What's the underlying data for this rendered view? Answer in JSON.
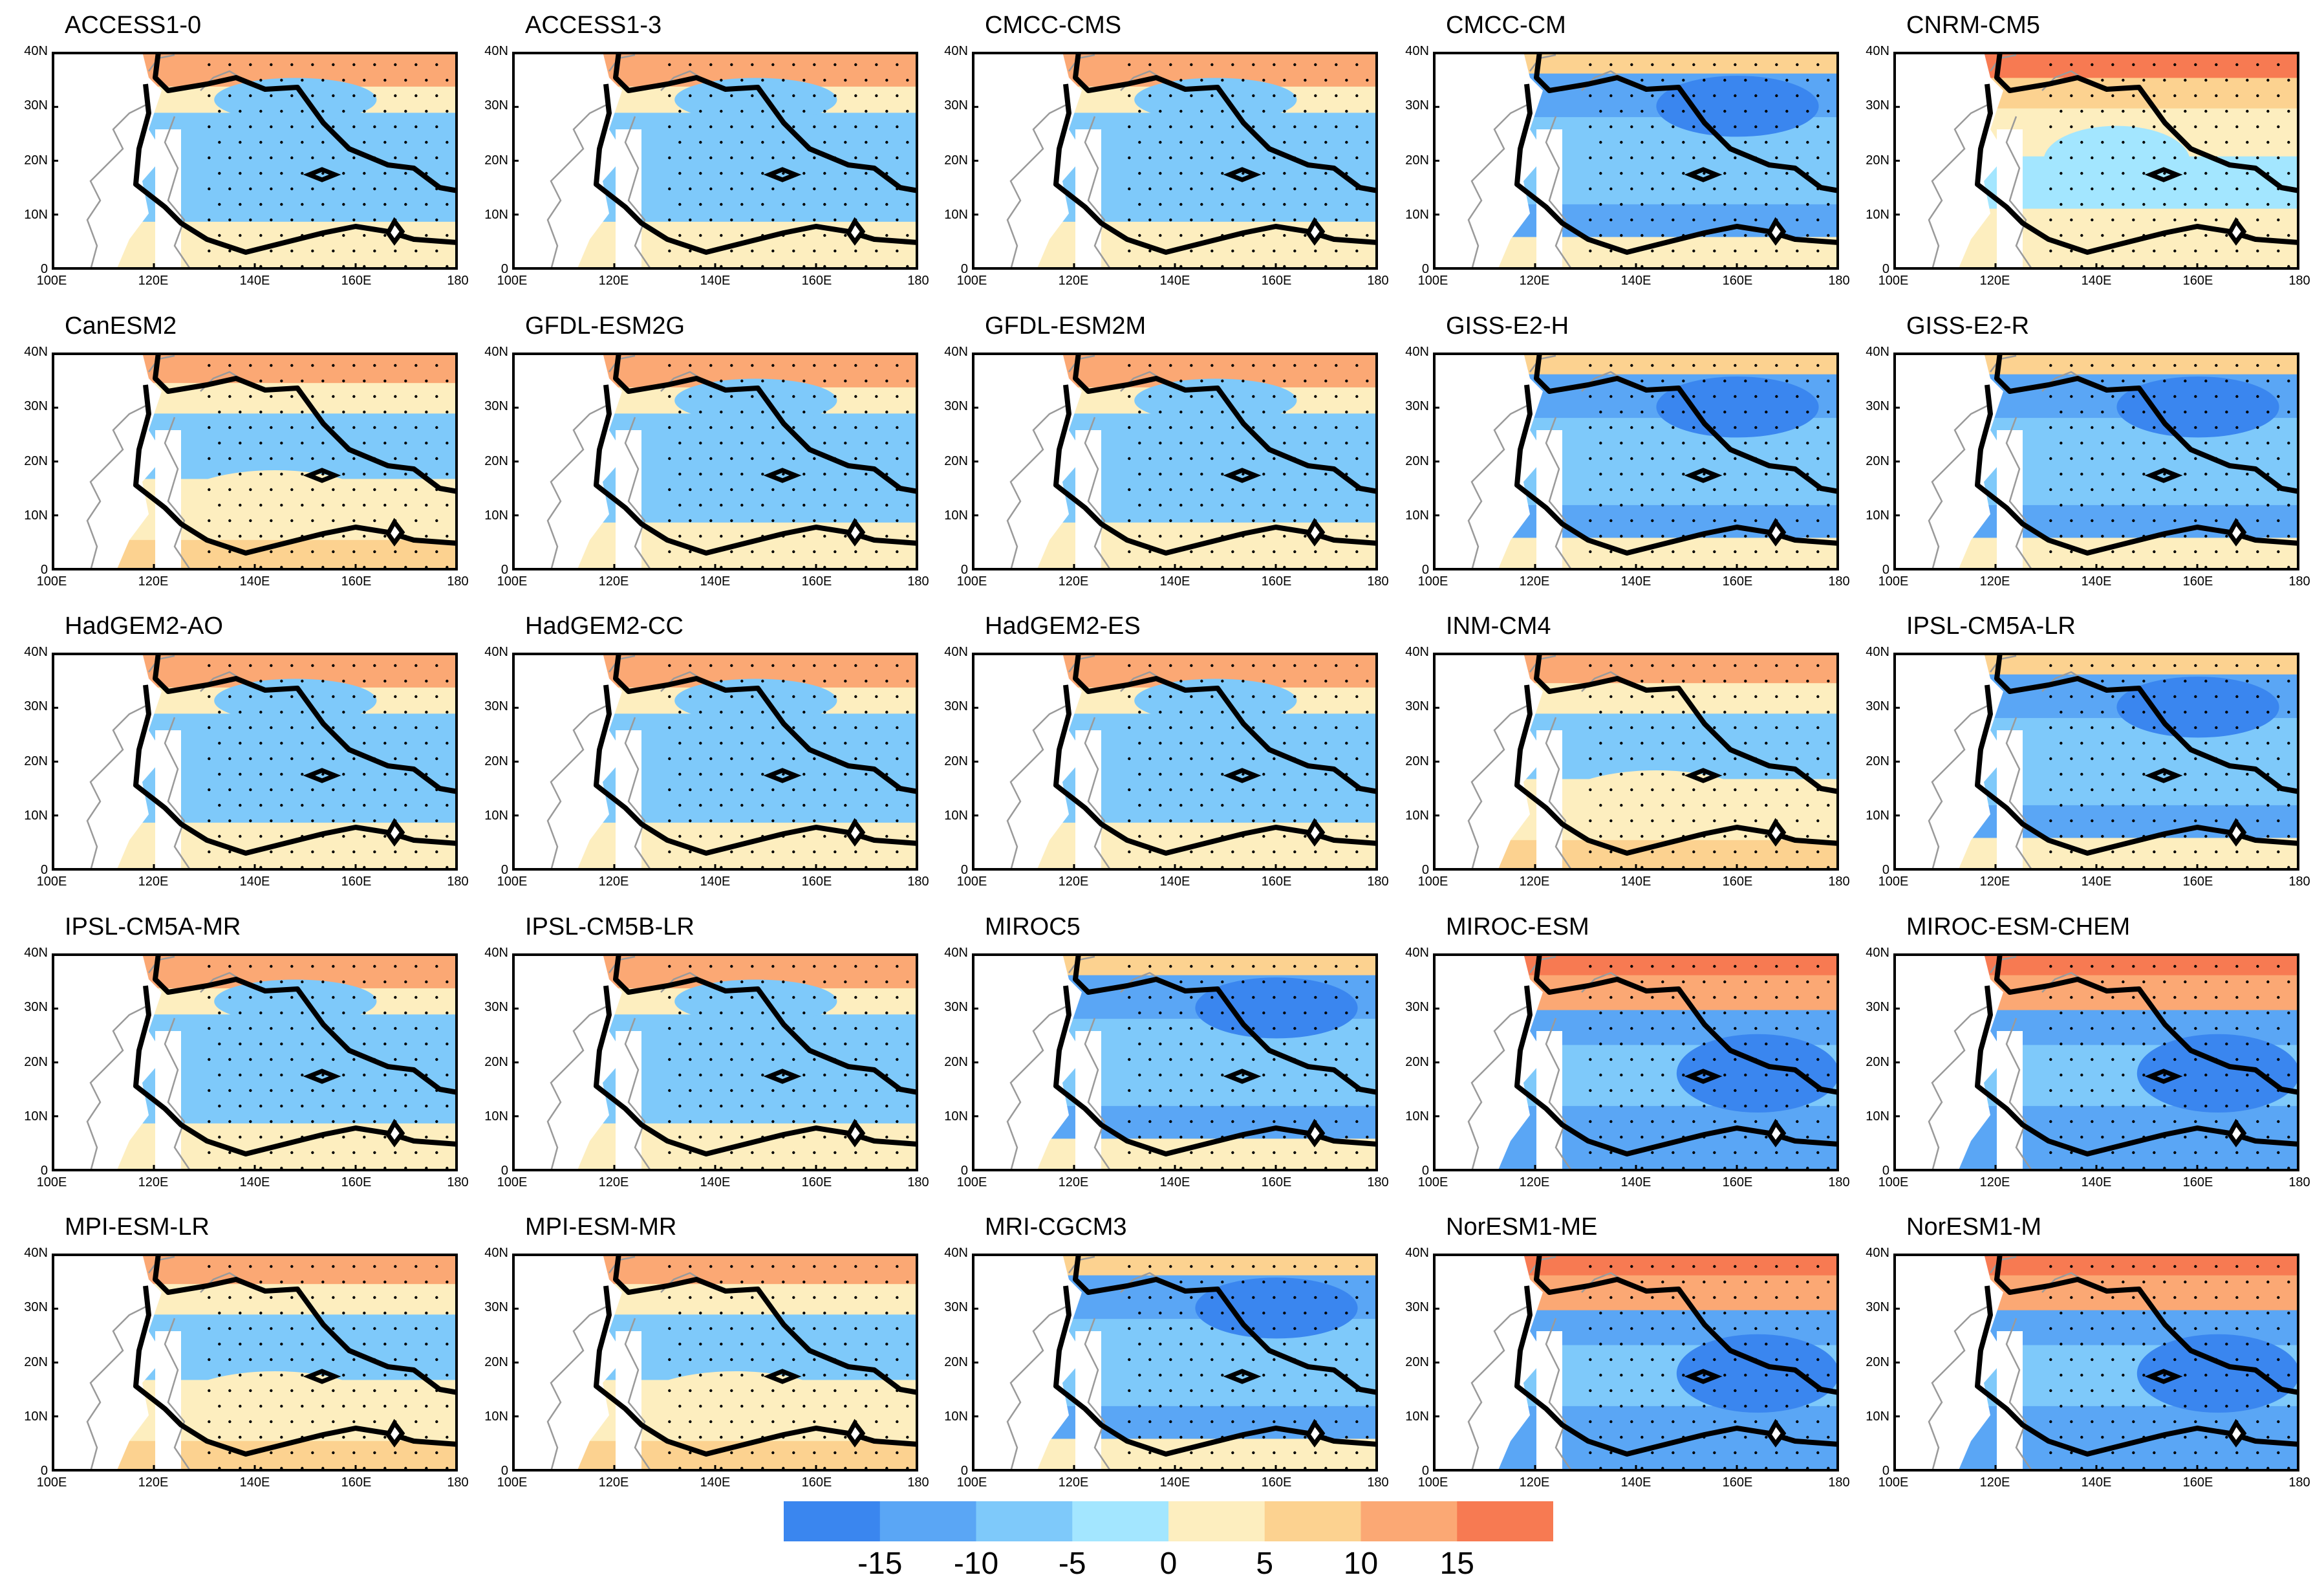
{
  "figure": {
    "panels": [
      {
        "title": "ACCESS1-0",
        "pattern": 0
      },
      {
        "title": "ACCESS1-3",
        "pattern": 0
      },
      {
        "title": "CMCC-CMS",
        "pattern": 0
      },
      {
        "title": "CMCC-CM",
        "pattern": 2
      },
      {
        "title": "CNRM-CM5",
        "pattern": 1
      },
      {
        "title": "CanESM2",
        "pattern": 3
      },
      {
        "title": "GFDL-ESM2G",
        "pattern": 0
      },
      {
        "title": "GFDL-ESM2M",
        "pattern": 0
      },
      {
        "title": "GISS-E2-H",
        "pattern": 2
      },
      {
        "title": "GISS-E2-R",
        "pattern": 2
      },
      {
        "title": "HadGEM2-AO",
        "pattern": 0
      },
      {
        "title": "HadGEM2-CC",
        "pattern": 0
      },
      {
        "title": "HadGEM2-ES",
        "pattern": 0
      },
      {
        "title": "INM-CM4",
        "pattern": 3
      },
      {
        "title": "IPSL-CM5A-LR",
        "pattern": 2
      },
      {
        "title": "IPSL-CM5A-MR",
        "pattern": 0
      },
      {
        "title": "IPSL-CM5B-LR",
        "pattern": 0
      },
      {
        "title": "MIROC5",
        "pattern": 2
      },
      {
        "title": "MIROC-ESM",
        "pattern": 4
      },
      {
        "title": "MIROC-ESM-CHEM",
        "pattern": 4
      },
      {
        "title": "MPI-ESM-LR",
        "pattern": 3
      },
      {
        "title": "MPI-ESM-MR",
        "pattern": 3
      },
      {
        "title": "MRI-CGCM3",
        "pattern": 2
      },
      {
        "title": "NorESM1-ME",
        "pattern": 4
      },
      {
        "title": "NorESM1-M",
        "pattern": 4
      }
    ],
    "axes": {
      "lat_ticks": [
        "0",
        "10N",
        "20N",
        "30N",
        "40N"
      ],
      "lon_ticks": [
        "100E",
        "120E",
        "140E",
        "160E",
        "180"
      ],
      "lat_range": [
        0,
        40
      ],
      "lon_range": [
        100,
        180
      ]
    },
    "colorbar": {
      "labels": [
        "-15",
        "-10",
        "-5",
        "0",
        "5",
        "10",
        "15"
      ],
      "boundaries": [
        -20,
        -15,
        -10,
        -5,
        0,
        5,
        10,
        15,
        20
      ],
      "colors": [
        "#3a86ef",
        "#5aa6f5",
        "#7ec9fa",
        "#a3e6ff",
        "#fdeebf",
        "#fcd290",
        "#fba874",
        "#f77a52"
      ]
    }
  }
}
